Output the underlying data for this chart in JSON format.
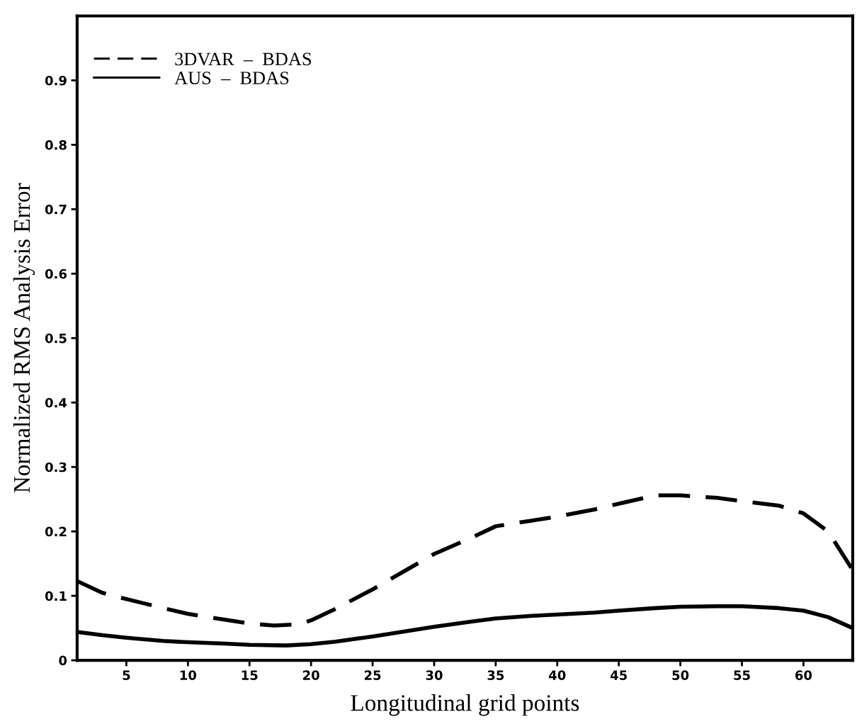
{
  "chart_data": {
    "type": "line",
    "xlabel": "Longitudinal grid points",
    "ylabel": "Normalized RMS Analysis Error",
    "series": [
      {
        "name": "3DVAR  –  BDAS",
        "color": "#000000",
        "line_style": "dashed",
        "x": [
          1,
          3,
          5,
          8,
          10,
          13,
          15,
          17,
          19,
          20,
          22,
          25,
          28,
          30,
          33,
          35,
          38,
          40,
          43,
          45,
          48,
          50,
          53,
          55,
          58,
          60,
          62,
          64
        ],
        "values": [
          0.123,
          0.105,
          0.095,
          0.081,
          0.072,
          0.063,
          0.057,
          0.054,
          0.056,
          0.062,
          0.08,
          0.11,
          0.143,
          0.165,
          0.19,
          0.208,
          0.217,
          0.223,
          0.234,
          0.243,
          0.256,
          0.256,
          0.252,
          0.247,
          0.24,
          0.228,
          0.2,
          0.14
        ]
      },
      {
        "name": "AUS  –  BDAS",
        "color": "#000000",
        "line_style": "solid",
        "x": [
          1,
          3,
          5,
          8,
          10,
          13,
          15,
          18,
          20,
          22,
          25,
          28,
          30,
          33,
          35,
          38,
          40,
          43,
          45,
          48,
          50,
          53,
          55,
          58,
          60,
          62,
          64
        ],
        "values": [
          0.044,
          0.039,
          0.035,
          0.03,
          0.028,
          0.026,
          0.024,
          0.023,
          0.025,
          0.029,
          0.037,
          0.046,
          0.052,
          0.06,
          0.065,
          0.069,
          0.071,
          0.074,
          0.077,
          0.081,
          0.083,
          0.084,
          0.084,
          0.081,
          0.077,
          0.067,
          0.05
        ]
      }
    ],
    "xlim": [
      1,
      64
    ],
    "xticks": [
      5,
      10,
      15,
      20,
      25,
      30,
      35,
      40,
      45,
      50,
      55,
      60
    ],
    "ylim": [
      0,
      1
    ],
    "yticks": [
      0,
      0.1,
      0.2,
      0.3,
      0.4,
      0.5,
      0.6,
      0.7,
      0.8,
      0.9
    ],
    "grid": false,
    "legend": "top left",
    "marker": "none"
  }
}
